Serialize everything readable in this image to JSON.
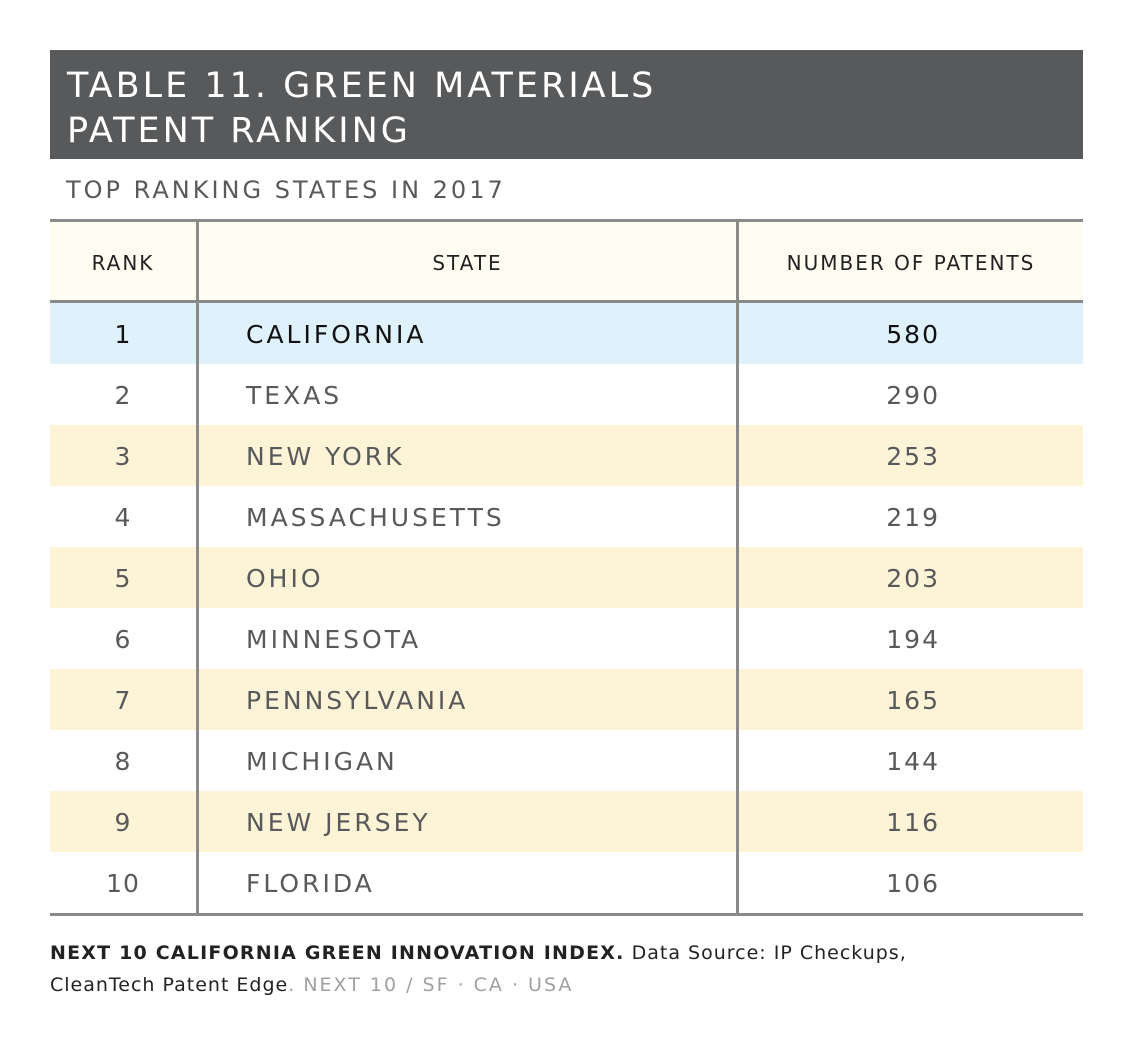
{
  "title": {
    "line1": "TABLE 11. GREEN MATERIALS",
    "line2": "PATENT RANKING"
  },
  "subtitle": "TOP RANKING STATES IN 2017",
  "colors": {
    "title_bar": "#58595b",
    "highlight_row": "#dff1fb",
    "alt_row": "#fdf3d6",
    "header_row": "#fffcf2",
    "rule": "#8a8a8a"
  },
  "chart_data": {
    "type": "table",
    "columns": [
      "RANK",
      "STATE",
      "NUMBER OF PATENTS"
    ],
    "rows": [
      {
        "rank": "1",
        "state": "CALIFORNIA",
        "patents": "580"
      },
      {
        "rank": "2",
        "state": "TEXAS",
        "patents": "290"
      },
      {
        "rank": "3",
        "state": "NEW YORK",
        "patents": "253"
      },
      {
        "rank": "4",
        "state": "MASSACHUSETTS",
        "patents": "219"
      },
      {
        "rank": "5",
        "state": "OHIO",
        "patents": "203"
      },
      {
        "rank": "6",
        "state": "MINNESOTA",
        "patents": "194"
      },
      {
        "rank": "7",
        "state": "PENNSYLVANIA",
        "patents": "165"
      },
      {
        "rank": "8",
        "state": "MICHIGAN",
        "patents": "144"
      },
      {
        "rank": "9",
        "state": "NEW JERSEY",
        "patents": "116"
      },
      {
        "rank": "10",
        "state": "FLORIDA",
        "patents": "106"
      }
    ]
  },
  "footer": {
    "bold": "NEXT 10 CALIFORNIA GREEN INNOVATION INDEX.",
    "source_line1": "Data Source: IP Checkups,",
    "source_line2": "CleanTech Patent Edge",
    "period": ".",
    "credit": "NEXT 10 / SF · CA · USA"
  }
}
